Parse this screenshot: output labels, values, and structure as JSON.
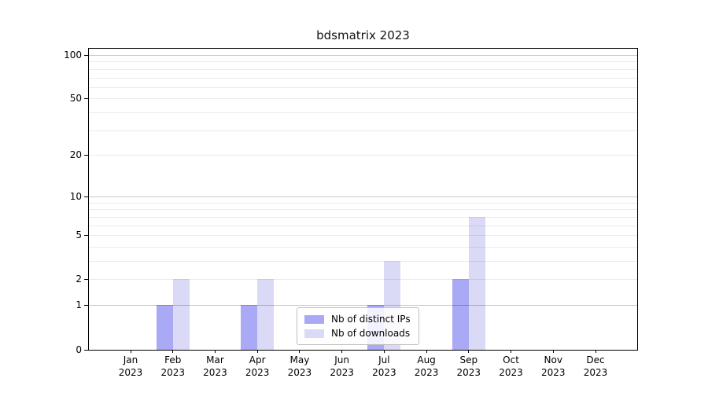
{
  "title": "bdsmatrix 2023",
  "chart_data": {
    "type": "bar",
    "title": "bdsmatrix 2023",
    "categories": [
      "Jan",
      "Feb",
      "Mar",
      "Apr",
      "May",
      "Jun",
      "Jul",
      "Aug",
      "Sep",
      "Oct",
      "Nov",
      "Dec"
    ],
    "category_year": "2023",
    "series": [
      {
        "name": "Nb of distinct IPs",
        "color": "#a9a9f5",
        "values": [
          0,
          1,
          0,
          1,
          0,
          0,
          1,
          0,
          2,
          0,
          0,
          0
        ]
      },
      {
        "name": "Nb of downloads",
        "color": "#dadaf7",
        "values": [
          0,
          2,
          0,
          2,
          0,
          0,
          3,
          0,
          7,
          0,
          0,
          0
        ]
      }
    ],
    "xlabel": "",
    "ylabel": "",
    "yscale": "log1p",
    "ylim": [
      0,
      110
    ],
    "ytick_values": [
      0,
      1,
      2,
      5,
      10,
      20,
      50,
      100
    ],
    "minor_grid_values": [
      2,
      3,
      4,
      5,
      6,
      7,
      8,
      9,
      20,
      30,
      40,
      50,
      60,
      70,
      80,
      90
    ],
    "major_grid_values": [
      1,
      10,
      100
    ],
    "grid": true,
    "legend_position": "lower center",
    "colors": {
      "axis": "#000000",
      "grid_minor": "#ebebeb",
      "grid_major": "#c9c9c9",
      "background": "#ffffff"
    }
  }
}
